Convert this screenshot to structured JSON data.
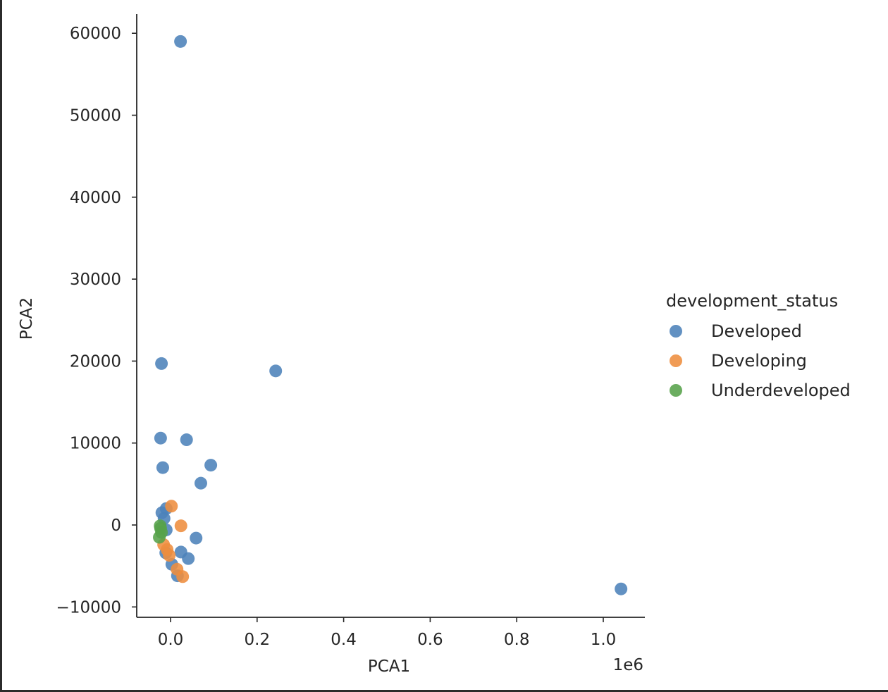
{
  "chart_data": {
    "type": "scatter",
    "title": "",
    "xlabel": "PCA1",
    "ylabel": "PCA2",
    "x_offset_label": "1e6",
    "xlim": [
      -90000,
      1100000
    ],
    "ylim": [
      -11200,
      62300
    ],
    "xticks": [
      0,
      200000,
      400000,
      600000,
      800000,
      1000000
    ],
    "xtick_labels": [
      "0.0",
      "0.2",
      "0.4",
      "0.6",
      "0.8",
      "1.0"
    ],
    "yticks": [
      -10000,
      0,
      10000,
      20000,
      30000,
      40000,
      50000,
      60000
    ],
    "ytick_labels": [
      "−10000",
      "0",
      "10000",
      "20000",
      "30000",
      "40000",
      "50000",
      "60000"
    ],
    "grid": false,
    "legend": {
      "title": "development_status",
      "placement": "right-outside",
      "entries": [
        "Developed",
        "Developing",
        "Underdeveloped"
      ]
    },
    "series": [
      {
        "name": "Developed",
        "color": "#4c82b9",
        "points": [
          [
            23000,
            59000
          ],
          [
            -21000,
            19700
          ],
          [
            243000,
            18800
          ],
          [
            -23000,
            10600
          ],
          [
            37000,
            10400
          ],
          [
            -18000,
            7000
          ],
          [
            93000,
            7300
          ],
          [
            70000,
            5100
          ],
          [
            -20000,
            1500
          ],
          [
            -10000,
            2000
          ],
          [
            -15000,
            800
          ],
          [
            -10000,
            -600
          ],
          [
            59000,
            -1600
          ],
          [
            24000,
            -3300
          ],
          [
            41000,
            -4100
          ],
          [
            -11000,
            -3400
          ],
          [
            3000,
            -4800
          ],
          [
            16000,
            -6200
          ],
          [
            1041000,
            -7800
          ]
        ]
      },
      {
        "name": "Developing",
        "color": "#ee8d3d",
        "points": [
          [
            2000,
            2300
          ],
          [
            24000,
            -100
          ],
          [
            -16000,
            -2400
          ],
          [
            -8000,
            -3000
          ],
          [
            -3000,
            -3700
          ],
          [
            15000,
            -5400
          ],
          [
            28000,
            -6300
          ]
        ]
      },
      {
        "name": "Underdeveloped",
        "color": "#56a24a",
        "points": [
          [
            -24000,
            -100
          ],
          [
            -21000,
            -900
          ],
          [
            -26000,
            -1500
          ],
          [
            -23000,
            -400
          ]
        ]
      }
    ]
  }
}
